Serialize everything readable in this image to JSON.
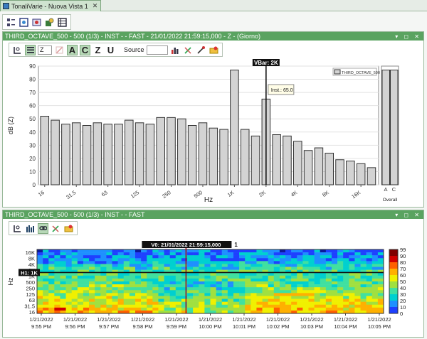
{
  "tab": {
    "title": "TonaliVarie - Nuova Vista 1",
    "close": "✕"
  },
  "panel1": {
    "title": "THIRD_OCTAVE_500 - 500 (1/3) - INST - - FAST - 21/01/2022 21:59:15,000 - Z - (Giorno)",
    "window_controls": "▾ ◻ ✕",
    "toolbar": {
      "weighting_select": "Z",
      "btn_a": "A",
      "btn_c": "C",
      "btn_z": "Z",
      "btn_u": "U",
      "source_label": "Source"
    }
  },
  "panel2": {
    "title": "THIRD_OCTAVE_500 - 500 (1/3) - INST - - FAST",
    "window_controls": "▾ ◻ ✕"
  },
  "chart_data": [
    {
      "type": "bar",
      "ylabel": "dB (Z)",
      "xlabel": "Hz",
      "ylim": [
        0,
        90
      ],
      "yticks": [
        0,
        10,
        20,
        30,
        40,
        50,
        60,
        70,
        80,
        90
      ],
      "tick_labels": [
        "16",
        "31.5",
        "63",
        "125",
        "250",
        "500",
        "1K",
        "2K",
        "4K",
        "8K",
        "16K"
      ],
      "values": [
        52,
        49,
        46,
        47,
        45,
        47,
        46,
        46,
        49,
        47,
        46,
        51,
        51,
        50,
        45,
        47,
        43,
        42,
        87,
        42,
        37,
        65,
        38,
        37,
        33,
        26,
        28,
        24,
        19,
        18,
        16,
        13
      ],
      "legend": "THIRD_OCTAVE_500",
      "legend_position": "top-right",
      "cursor": {
        "label": "VBar: 2K",
        "tooltip": "Inst.: 65.0"
      },
      "overall": {
        "labels": [
          "A",
          "C"
        ],
        "values": [
          87,
          87
        ],
        "xlabel": "Overall"
      }
    },
    {
      "type": "heatmap",
      "ylabel": "Hz",
      "y_tick_labels": [
        "16K",
        "8K",
        "4K",
        "2K",
        "1K",
        "500",
        "250",
        "125",
        "63",
        "31.5",
        "16"
      ],
      "x_tick_labels": [
        "1/21/2022\n9:55 PM",
        "1/21/2022\n9:56 PM",
        "1/21/2022\n9:57 PM",
        "1/21/2022\n9:58 PM",
        "1/21/2022\n9:59 PM",
        "1/21/2022\n10:00 PM",
        "1/21/2022\n10:01 PM",
        "1/21/2022\n10:02 PM",
        "1/21/2022\n10:03 PM",
        "1/21/2022\n10:04 PM",
        "1/21/2022\n10:05 PM"
      ],
      "colorbar_ticks": [
        "99",
        "90",
        "80",
        "70",
        "60",
        "50",
        "40",
        "30",
        "20",
        "10",
        "0"
      ],
      "cursor_v": "V0: 21/01/2022 21:59:15,000",
      "cursor_v_tag": "1",
      "cursor_h": "H1: 1K"
    }
  ]
}
